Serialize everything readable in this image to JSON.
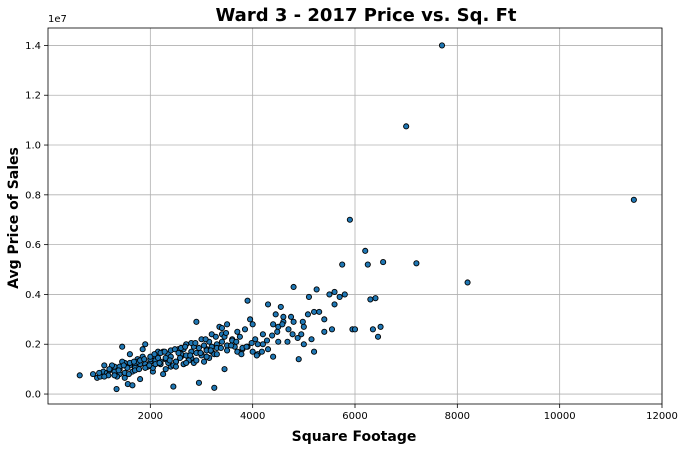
{
  "chart_data": {
    "type": "scatter",
    "title": "Ward 3 - 2017 Price vs. Sq. Ft",
    "xlabel": "Square Footage",
    "ylabel": "Avg Price of Sales",
    "y_offset_label": "1e7",
    "xlim": [
      0,
      12000
    ],
    "ylim": [
      -400000,
      14700000
    ],
    "x_ticks": [
      2000,
      4000,
      6000,
      8000,
      10000,
      12000
    ],
    "x_tick_labels": [
      "2000",
      "4000",
      "6000",
      "8000",
      "10000",
      "12000"
    ],
    "y_ticks": [
      0,
      2000000,
      4000000,
      6000000,
      8000000,
      10000000,
      12000000,
      14000000
    ],
    "y_tick_labels": [
      "0.0",
      "0.2",
      "0.4",
      "0.6",
      "0.8",
      "1.0",
      "1.2",
      "1.4"
    ],
    "grid": true,
    "marker_color": "#1f77b4",
    "marker_edge_color": "#000000",
    "series": [
      {
        "x": [
          620,
          880,
          960,
          1020,
          1080,
          1100,
          1150,
          1180,
          1250,
          1300,
          1340,
          1400,
          1450,
          1500,
          1560,
          1600,
          1650,
          1700,
          1750,
          1800,
          1850,
          1900,
          1950,
          2000,
          2050,
          2100,
          2150,
          2200,
          2250,
          2300,
          2350,
          2400,
          2450,
          2500,
          2550,
          2600,
          2650,
          2700,
          2750,
          2800,
          2850,
          2900,
          2950,
          3000,
          3050,
          3100,
          3150,
          3200,
          3250,
          3300,
          3350,
          3400,
          3450,
          3500,
          3600,
          3650,
          3700,
          3750,
          3800,
          3850,
          3900,
          3950,
          4000,
          4050,
          4100,
          4200,
          4300,
          4400,
          4450,
          4500,
          4550,
          4600,
          4700,
          4750,
          4800,
          4900,
          4950,
          5000,
          5100,
          5150,
          5200,
          5250,
          5300,
          5400,
          5500,
          5550,
          5600,
          5700,
          5750,
          5900,
          5950,
          6200,
          6250,
          6350,
          6400,
          6450,
          6550,
          7000,
          7200,
          7700,
          8200,
          11450,
          1300,
          1500,
          1700,
          1900,
          2100,
          2300,
          2500,
          2700,
          2900,
          3100,
          3300,
          3500,
          1200,
          1400,
          1600,
          1800,
          2000,
          2200,
          2400,
          2600,
          2800,
          3000,
          3200,
          3400,
          1350,
          1550,
          1750,
          1950,
          2150,
          2350,
          2550,
          2750,
          2950,
          3150,
          1250,
          1450,
          1650,
          1850,
          2050,
          2250,
          2450,
          2650,
          2850,
          3050,
          3250,
          3450,
          3700,
          3900,
          4100,
          4300,
          4500,
          1000,
          1100,
          1200,
          1300,
          1400,
          1500,
          1600,
          1700,
          1800,
          1900,
          2000,
          2100,
          2200,
          2300,
          2400,
          2500,
          2600,
          2700,
          2800,
          2900,
          3000,
          3100,
          3200,
          3300,
          3400,
          3500,
          3600,
          3800,
          4000,
          4200,
          4400,
          4600,
          4800,
          5000,
          5200,
          5400,
          5600,
          5800,
          6000,
          6300,
          6500,
          1380,
          1480,
          1580,
          1680,
          1780,
          1880,
          1980,
          2080,
          2180,
          2280,
          2380,
          2480,
          2580,
          2680,
          2780,
          2880,
          2980,
          3080,
          3180,
          3280,
          3380,
          3480,
          3580,
          3680,
          3780,
          3880,
          3980,
          4080,
          4180,
          4280,
          4380,
          4480,
          4580,
          4680,
          4780,
          4880,
          4980,
          5080
        ],
        "y": [
          750000,
          800000,
          650000,
          700000,
          900000,
          1150000,
          850000,
          750000,
          1000000,
          900000,
          200000,
          800000,
          1900000,
          650000,
          400000,
          1600000,
          350000,
          1200000,
          1400000,
          600000,
          1800000,
          2000000,
          1100000,
          1300000,
          900000,
          1500000,
          1700000,
          1200000,
          800000,
          1400000,
          1600000,
          1100000,
          300000,
          1300000,
          1800000,
          1500000,
          1200000,
          2000000,
          1400000,
          1700000,
          1900000,
          2900000,
          450000,
          1600000,
          1300000,
          1800000,
          2100000,
          1700000,
          250000,
          2000000,
          2700000,
          2400000,
          1000000,
          2800000,
          2200000,
          1900000,
          2500000,
          2300000,
          1800000,
          2600000,
          3750000,
          3000000,
          2800000,
          2200000,
          1600000,
          2000000,
          3600000,
          1500000,
          3200000,
          2700000,
          3500000,
          2900000,
          2600000,
          3100000,
          4300000,
          1400000,
          2400000,
          2000000,
          3900000,
          2200000,
          1700000,
          4200000,
          3300000,
          2500000,
          4000000,
          2600000,
          4100000,
          3900000,
          5200000,
          7000000,
          2600000,
          5750000,
          5200000,
          2600000,
          3850000,
          2300000,
          5300000,
          10750000,
          5250000,
          14000000,
          4480000,
          7800000,
          1100000,
          1250000,
          1050000,
          1200000,
          1350000,
          1450000,
          1300000,
          1550000,
          1650000,
          1750000,
          1850000,
          1950000,
          950000,
          1000000,
          1150000,
          1200000,
          1400000,
          1300000,
          1500000,
          1600000,
          1450000,
          1550000,
          1900000,
          2100000,
          700000,
          1050000,
          1300000,
          1100000,
          1450000,
          1250000,
          1650000,
          1350000,
          1850000,
          1450000,
          1150000,
          1300000,
          900000,
          1500000,
          1050000,
          1700000,
          1150000,
          1800000,
          1250000,
          1950000,
          1600000,
          2300000,
          1700000,
          1900000,
          2000000,
          1800000,
          2100000,
          850000,
          700000,
          1000000,
          750000,
          1100000,
          850000,
          1250000,
          950000,
          1350000,
          1050000,
          1500000,
          1200000,
          1650000,
          1000000,
          1750000,
          1100000,
          1850000,
          1250000,
          2050000,
          1350000,
          2200000,
          1500000,
          2400000,
          1600000,
          2650000,
          1750000,
          2150000,
          1850000,
          1700000,
          2400000,
          2800000,
          3100000,
          2900000,
          2700000,
          3300000,
          3000000,
          3600000,
          4000000,
          2600000,
          3800000,
          2700000,
          950000,
          1150000,
          800000,
          1300000,
          1000000,
          1400000,
          1150000,
          1600000,
          1250000,
          1700000,
          1350000,
          1800000,
          1450000,
          1900000,
          1550000,
          2050000,
          1650000,
          2200000,
          1750000,
          2300000,
          1850000,
          2450000,
          1950000,
          2100000,
          1600000,
          1900000,
          2050000,
          1550000,
          1700000,
          2150000,
          2350000,
          2500000,
          2800000,
          2100000,
          2400000,
          2250000,
          2900000,
          3200000
        ]
      }
    ]
  }
}
